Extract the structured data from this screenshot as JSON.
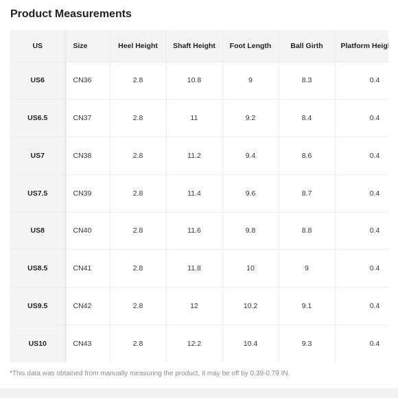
{
  "title": "Product Measurements",
  "table": {
    "headers": [
      "US",
      "Size",
      "Heel Height",
      "Shaft Height",
      "Foot Length",
      "Ball Girth",
      "Platform Height"
    ],
    "rows": [
      [
        "US6",
        "CN36",
        "2.8",
        "10.8",
        "9",
        "8.3",
        "0.4"
      ],
      [
        "US6.5",
        "CN37",
        "2.8",
        "11",
        "9.2",
        "8.4",
        "0.4"
      ],
      [
        "US7",
        "CN38",
        "2.8",
        "11.2",
        "9.4",
        "8.6",
        "0.4"
      ],
      [
        "US7.5",
        "CN39",
        "2.8",
        "11.4",
        "9.6",
        "8.7",
        "0.4"
      ],
      [
        "US8",
        "CN40",
        "2.8",
        "11.6",
        "9.8",
        "8.8",
        "0.4"
      ],
      [
        "US8.5",
        "CN41",
        "2.8",
        "11.8",
        "10",
        "9",
        "0.4"
      ],
      [
        "US9.5",
        "CN42",
        "2.8",
        "12",
        "10.2",
        "9.1",
        "0.4"
      ],
      [
        "US10",
        "CN43",
        "2.8",
        "12.2",
        "10.4",
        "9.3",
        "0.4"
      ]
    ]
  },
  "note": "*This data was obtained from manually measuring the product, it may be off by 0.39-0.79 IN."
}
